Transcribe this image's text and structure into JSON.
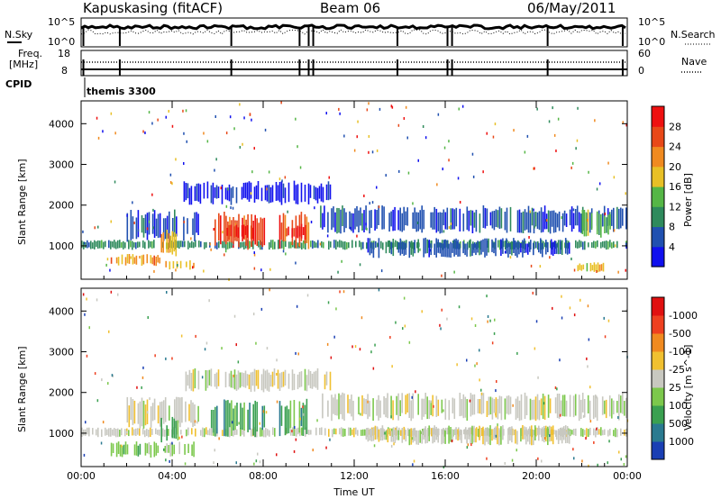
{
  "header": {
    "station": "Kapuskasing (fitACF)",
    "beam": "Beam 06",
    "date": "06/May/2011"
  },
  "top_panels": {
    "nsky_label": "N.Sky",
    "nsearch_label": "N.Search",
    "noise_ticks_left": [
      "10^5",
      "10^0"
    ],
    "noise_ticks_right": [
      "10^5",
      "10^0"
    ],
    "freq_label_1": "Freq.",
    "freq_label_2": "[MHz]",
    "freq_ticks": [
      "18",
      "8"
    ],
    "nave_label": "Nave",
    "nave_ticks": [
      "60",
      "0"
    ],
    "cpid_label": "CPID",
    "cpid_value": "themis 3300"
  },
  "chart_data": [
    {
      "type": "heatmap",
      "title": "",
      "xlabel": "Time UT",
      "ylabel": "Slant Range [km]",
      "x_ticks": [
        "00:00",
        "04:00",
        "08:00",
        "12:00",
        "16:00",
        "20:00",
        "00:00"
      ],
      "y_ticks": [
        1000,
        2000,
        3000,
        4000
      ],
      "xlim": [
        0,
        24
      ],
      "ylim": [
        180,
        4560
      ],
      "colorbar": {
        "label": "Power [dB]",
        "ticks": [
          "4",
          "8",
          "12",
          "16",
          "20",
          "24",
          "28"
        ],
        "colors": [
          "#1010ee",
          "#2050b0",
          "#2e8a5c",
          "#55b646",
          "#e8c026",
          "#f08a20",
          "#e84818",
          "#ee1010"
        ]
      },
      "regions": [
        {
          "t": [
            0.0,
            24.0
          ],
          "r": [
            900,
            1150
          ],
          "level": 2
        },
        {
          "t": [
            2.0,
            5.2
          ],
          "r": [
            1100,
            1900
          ],
          "level": 1
        },
        {
          "t": [
            3.5,
            4.3
          ],
          "r": [
            700,
            1400
          ],
          "level": 4
        },
        {
          "t": [
            1.3,
            3.5
          ],
          "r": [
            500,
            800
          ],
          "level": 5
        },
        {
          "t": [
            3.7,
            5.0
          ],
          "r": [
            400,
            650
          ],
          "level": 4
        },
        {
          "t": [
            5.7,
            8.1
          ],
          "r": [
            900,
            1850
          ],
          "level": 6
        },
        {
          "t": [
            6.4,
            7.6
          ],
          "r": [
            1150,
            1550
          ],
          "level": 7
        },
        {
          "t": [
            8.7,
            10.2
          ],
          "r": [
            900,
            1850
          ],
          "level": 6
        },
        {
          "t": [
            9.0,
            9.9
          ],
          "r": [
            1150,
            1550
          ],
          "level": 7
        },
        {
          "t": [
            10.5,
            24.0
          ],
          "r": [
            1300,
            2000
          ],
          "level": 1
        },
        {
          "t": [
            12.5,
            21.5
          ],
          "r": [
            700,
            1200
          ],
          "level": 1
        },
        {
          "t": [
            4.5,
            11.0
          ],
          "r": [
            2000,
            2600
          ],
          "level": 0
        },
        {
          "t": [
            22.0,
            23.3
          ],
          "r": [
            1200,
            1900
          ],
          "level": 3
        },
        {
          "t": [
            21.8,
            23.0
          ],
          "r": [
            350,
            600
          ],
          "level": 4
        }
      ]
    },
    {
      "type": "heatmap",
      "title": "",
      "xlabel": "Time UT",
      "ylabel": "Slant Range [km]",
      "x_ticks": [
        "00:00",
        "04:00",
        "08:00",
        "12:00",
        "16:00",
        "20:00",
        "00:00"
      ],
      "y_ticks": [
        1000,
        2000,
        3000,
        4000
      ],
      "xlim": [
        0,
        24
      ],
      "ylim": [
        180,
        4560
      ],
      "colorbar": {
        "label": "Velocity [m s^-1]",
        "ticks": [
          "1000",
          "500",
          "100",
          "25",
          "-25",
          "-100",
          "-500",
          "-1000"
        ],
        "colors": [
          "#1a3fb4",
          "#2a7a90",
          "#3aa050",
          "#7cc84c",
          "#c8c8c0",
          "#f0c030",
          "#f08a20",
          "#ee4020",
          "#e01010"
        ]
      },
      "regions": [
        {
          "t": [
            0.0,
            24.0
          ],
          "r": [
            900,
            1150
          ],
          "level": 4
        },
        {
          "t": [
            2.0,
            5.2
          ],
          "r": [
            1100,
            1900
          ],
          "level": 4
        },
        {
          "t": [
            3.5,
            4.3
          ],
          "r": [
            700,
            1400
          ],
          "level": 2
        },
        {
          "t": [
            5.7,
            8.1
          ],
          "r": [
            900,
            1850
          ],
          "level": 2
        },
        {
          "t": [
            8.7,
            10.2
          ],
          "r": [
            900,
            1850
          ],
          "level": 2
        },
        {
          "t": [
            10.5,
            24.0
          ],
          "r": [
            1300,
            2000
          ],
          "level": 4
        },
        {
          "t": [
            4.5,
            11.0
          ],
          "r": [
            2000,
            2600
          ],
          "level": 4
        },
        {
          "t": [
            12.5,
            21.5
          ],
          "r": [
            700,
            1200
          ],
          "level": 4
        },
        {
          "t": [
            1.3,
            5.0
          ],
          "r": [
            400,
            800
          ],
          "level": 3
        }
      ]
    }
  ]
}
